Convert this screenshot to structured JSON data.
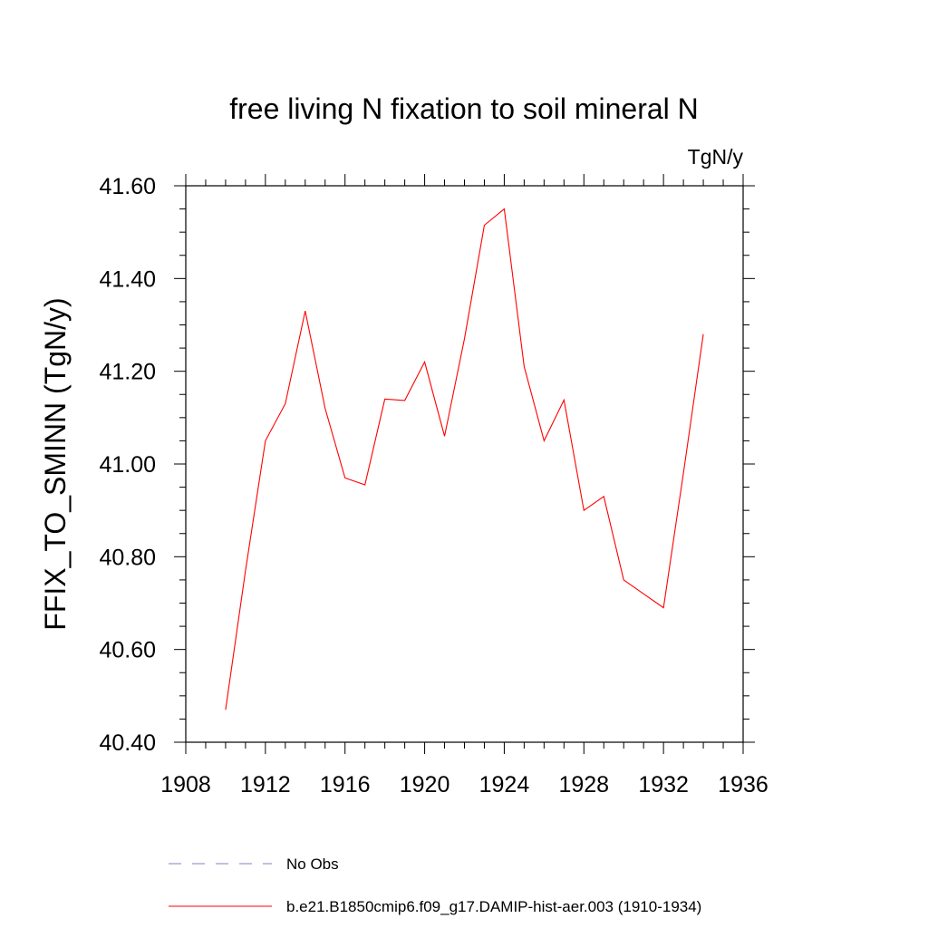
{
  "chart_data": {
    "type": "line",
    "title": "free living N fixation to soil mineral N",
    "units": "TgN/y",
    "xlabel": "",
    "ylabel": "FFIX_TO_SMINN  (TgN/y)",
    "xlim": [
      1908,
      1936
    ],
    "ylim": [
      40.4,
      41.6
    ],
    "x_major_ticks": [
      1908,
      1912,
      1916,
      1920,
      1924,
      1928,
      1932,
      1936
    ],
    "x_tick_labels": [
      "1908",
      "1912",
      "1916",
      "1920",
      "1924",
      "1928",
      "1932",
      "1936"
    ],
    "y_major_ticks": [
      40.4,
      40.6,
      40.8,
      41.0,
      41.2,
      41.4,
      41.6
    ],
    "y_tick_labels": [
      "40.40",
      "40.60",
      "40.80",
      "41.00",
      "41.20",
      "41.40",
      "41.60"
    ],
    "grid": false,
    "legend_position": "bottom",
    "series": [
      {
        "name": "b.e21.B1850cmip6.f09_g17.DAMIP-hist-aer.003 (1910-1934)",
        "color": "#ff0000",
        "dash": "solid",
        "x": [
          1910,
          1911,
          1912,
          1913,
          1914,
          1915,
          1916,
          1917,
          1918,
          1919,
          1920,
          1921,
          1922,
          1923,
          1924,
          1925,
          1926,
          1927,
          1928,
          1929,
          1930,
          1931,
          1932,
          1933,
          1934
        ],
        "y": [
          40.47,
          40.77,
          41.05,
          41.13,
          41.33,
          41.12,
          40.97,
          40.955,
          41.14,
          41.137,
          41.22,
          41.06,
          41.27,
          41.515,
          41.55,
          41.21,
          41.05,
          41.138,
          40.9,
          40.93,
          40.75,
          40.72,
          40.69,
          40.98,
          41.28
        ]
      }
    ],
    "legend": [
      {
        "label": "No Obs",
        "color": "#8080c0",
        "dash": "dashed"
      },
      {
        "label": "b.e21.B1850cmip6.f09_g17.DAMIP-hist-aer.003 (1910-1934)",
        "color": "#ff0000",
        "dash": "solid"
      }
    ]
  }
}
